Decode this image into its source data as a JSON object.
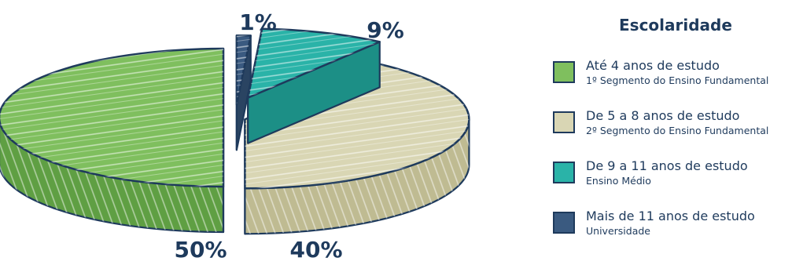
{
  "chart_data": {
    "type": "pie",
    "legend_title": "Escolaridade",
    "legend_position": "right",
    "slices": [
      {
        "label": "Até 4 anos de estudo",
        "sublabel": "1º Segmento do Ensino Fundamental",
        "value": 50,
        "value_label": "50%",
        "color": "#7fbf5e",
        "dark": "#5f9f43"
      },
      {
        "label": "De 5 a 8 anos de estudo",
        "sublabel": "2º Segmento do Ensino Fundamental",
        "value": 40,
        "value_label": "40%",
        "color": "#d9d6b4",
        "dark": "#bfbb92"
      },
      {
        "label": "De 9 a 11 anos de estudo",
        "sublabel": "Ensino Médio",
        "value": 9,
        "value_label": "9%",
        "color": "#2ab3a8",
        "dark": "#1c8f86"
      },
      {
        "label": "Mais de 11 anos de estudo",
        "sublabel": "Universidade",
        "value": 1,
        "value_label": "1%",
        "color": "#3a5a80",
        "dark": "#2a4462"
      }
    ]
  },
  "colors": {
    "outline": "#1e3a5c",
    "text": "#1e3a5c"
  }
}
